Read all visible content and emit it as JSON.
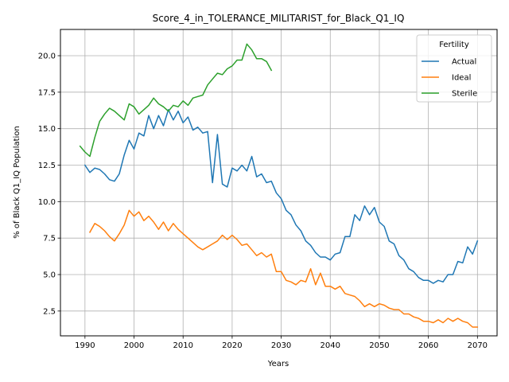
{
  "chart_data": {
    "type": "line",
    "title": "Score_4_in_TOLERANCE_MILITARIST_for_Black_Q1_IQ",
    "xlabel": "Years",
    "ylabel": "% of Black Q1_IQ Population",
    "xlim": [
      1985,
      2074
    ],
    "ylim": [
      0.8,
      21.8
    ],
    "xticks": [
      1990,
      2000,
      2010,
      2020,
      2030,
      2040,
      2050,
      2060,
      2070
    ],
    "yticks": [
      2.5,
      5.0,
      7.5,
      10.0,
      12.5,
      15.0,
      17.5,
      20.0
    ],
    "ytick_labels": [
      "2.5",
      "5.0",
      "7.5",
      "10.0",
      "12.5",
      "15.0",
      "17.5",
      "20.0"
    ],
    "grid": true,
    "legend": {
      "title": "Fertility",
      "placement": "top-right"
    },
    "series": [
      {
        "name": "Actual",
        "color": "#1f77b4",
        "x": [
          1990,
          1991,
          1992,
          1993,
          1994,
          1995,
          1996,
          1997,
          1998,
          1999,
          2000,
          2001,
          2002,
          2003,
          2004,
          2005,
          2006,
          2007,
          2008,
          2009,
          2010,
          2011,
          2012,
          2013,
          2014,
          2015,
          2016,
          2017,
          2018,
          2019,
          2020,
          2021,
          2022,
          2023,
          2024,
          2025,
          2026,
          2027,
          2028,
          2029,
          2030,
          2031,
          2032,
          2033,
          2034,
          2035,
          2036,
          2037,
          2038,
          2039,
          2040,
          2041,
          2042,
          2043,
          2044,
          2045,
          2046,
          2047,
          2048,
          2049,
          2050,
          2051,
          2052,
          2053,
          2054,
          2055,
          2056,
          2057,
          2058,
          2059,
          2060,
          2061,
          2062,
          2063,
          2064,
          2065,
          2066,
          2067,
          2068,
          2069,
          2070
        ],
        "values": [
          12.5,
          12.0,
          12.3,
          12.2,
          11.9,
          11.5,
          11.4,
          11.9,
          13.2,
          14.2,
          13.6,
          14.7,
          14.5,
          15.9,
          15.0,
          15.9,
          15.2,
          16.3,
          15.6,
          16.2,
          15.4,
          15.8,
          14.9,
          15.1,
          14.7,
          14.8,
          11.3,
          14.6,
          11.2,
          11.0,
          12.3,
          12.1,
          12.5,
          12.1,
          13.1,
          11.7,
          11.9,
          11.3,
          11.4,
          10.6,
          10.2,
          9.4,
          9.1,
          8.4,
          8.0,
          7.3,
          7.0,
          6.5,
          6.2,
          6.2,
          6.0,
          6.4,
          6.5,
          7.6,
          7.6,
          9.1,
          8.7,
          9.7,
          9.1,
          9.6,
          8.6,
          8.3,
          7.3,
          7.1,
          6.3,
          6.0,
          5.4,
          5.2,
          4.8,
          4.6,
          4.6,
          4.4,
          4.6,
          4.5,
          5.0,
          5.0,
          5.9,
          5.8,
          6.9,
          6.4,
          7.3
        ]
      },
      {
        "name": "Ideal",
        "color": "#ff7f0e",
        "x": [
          1991,
          1992,
          1993,
          1994,
          1995,
          1996,
          1997,
          1998,
          1999,
          2000,
          2001,
          2002,
          2003,
          2004,
          2005,
          2006,
          2007,
          2008,
          2009,
          2010,
          2011,
          2012,
          2013,
          2014,
          2015,
          2016,
          2017,
          2018,
          2019,
          2020,
          2021,
          2022,
          2023,
          2024,
          2025,
          2026,
          2027,
          2028,
          2029,
          2030,
          2031,
          2032,
          2033,
          2034,
          2035,
          2036,
          2037,
          2038,
          2039,
          2040,
          2041,
          2042,
          2043,
          2044,
          2045,
          2046,
          2047,
          2048,
          2049,
          2050,
          2051,
          2052,
          2053,
          2054,
          2055,
          2056,
          2057,
          2058,
          2059,
          2060,
          2061,
          2062,
          2063,
          2064,
          2065,
          2066,
          2067,
          2068,
          2069,
          2070
        ],
        "values": [
          7.9,
          8.5,
          8.3,
          8.0,
          7.6,
          7.3,
          7.8,
          8.4,
          9.4,
          9.0,
          9.3,
          8.7,
          9.0,
          8.6,
          8.1,
          8.6,
          8.0,
          8.5,
          8.1,
          7.8,
          7.5,
          7.2,
          6.9,
          6.7,
          6.9,
          7.1,
          7.3,
          7.7,
          7.4,
          7.7,
          7.4,
          7.0,
          7.1,
          6.7,
          6.3,
          6.5,
          6.2,
          6.4,
          5.2,
          5.2,
          4.6,
          4.5,
          4.3,
          4.6,
          4.5,
          5.4,
          4.3,
          5.1,
          4.2,
          4.2,
          4.0,
          4.2,
          3.7,
          3.6,
          3.5,
          3.2,
          2.8,
          3.0,
          2.8,
          3.0,
          2.9,
          2.7,
          2.6,
          2.6,
          2.3,
          2.3,
          2.1,
          2.0,
          1.8,
          1.8,
          1.7,
          1.9,
          1.7,
          2.0,
          1.8,
          2.0,
          1.8,
          1.7,
          1.4,
          1.4
        ]
      },
      {
        "name": "Sterile",
        "color": "#2ca02c",
        "x": [
          1989,
          1990,
          1991,
          1992,
          1993,
          1994,
          1995,
          1996,
          1997,
          1998,
          1999,
          2000,
          2001,
          2002,
          2003,
          2004,
          2005,
          2006,
          2007,
          2008,
          2009,
          2010,
          2011,
          2012,
          2013,
          2014,
          2015,
          2016,
          2017,
          2018,
          2019,
          2020,
          2021,
          2022,
          2023,
          2024,
          2025,
          2026,
          2027,
          2028
        ],
        "values": [
          13.8,
          13.4,
          13.1,
          14.4,
          15.5,
          16.0,
          16.4,
          16.2,
          15.9,
          15.6,
          16.7,
          16.5,
          16.0,
          16.3,
          16.6,
          17.1,
          16.7,
          16.5,
          16.2,
          16.6,
          16.5,
          16.9,
          16.6,
          17.1,
          17.2,
          17.3,
          18.0,
          18.4,
          18.8,
          18.7,
          19.1,
          19.3,
          19.7,
          19.7,
          20.8,
          20.4,
          19.8,
          19.8,
          19.6,
          19.0
        ]
      }
    ]
  }
}
